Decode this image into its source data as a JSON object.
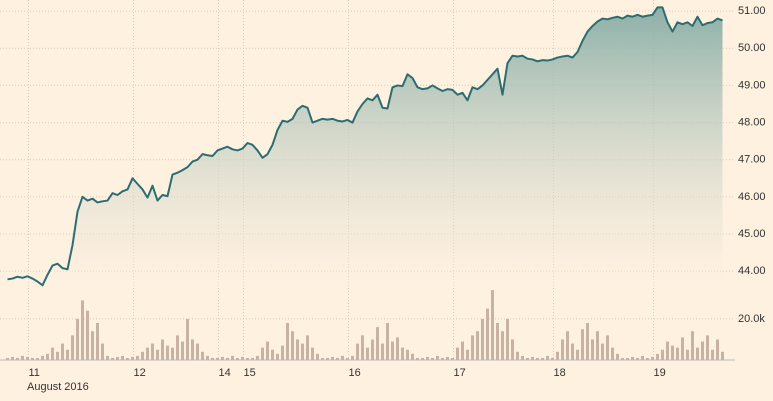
{
  "chart_data": [
    {
      "type": "area",
      "categories": [
        null,
        null,
        null,
        null,
        null,
        "11",
        null,
        null,
        null,
        null,
        null,
        null,
        null,
        null,
        null,
        null,
        null,
        null,
        null,
        null,
        null,
        null,
        null,
        null,
        null,
        null,
        "12",
        null,
        null,
        null,
        null,
        null,
        null,
        null,
        null,
        null,
        null,
        null,
        null,
        null,
        null,
        null,
        null,
        "14",
        null,
        null,
        null,
        null,
        "15",
        null,
        null,
        null,
        null,
        null,
        null,
        null,
        null,
        null,
        null,
        null,
        null,
        null,
        null,
        null,
        null,
        null,
        null,
        null,
        null,
        "16",
        null,
        null,
        null,
        null,
        null,
        null,
        null,
        null,
        null,
        null,
        null,
        null,
        null,
        null,
        null,
        null,
        null,
        null,
        null,
        null,
        "17",
        null,
        null,
        null,
        null,
        null,
        null,
        null,
        null,
        null,
        null,
        null,
        null,
        null,
        null,
        null,
        null,
        null,
        null,
        null,
        "18",
        null,
        null,
        null,
        null,
        null,
        null,
        null,
        null,
        null,
        null,
        null,
        null,
        null,
        null,
        null,
        null,
        null,
        null,
        null,
        "19",
        null,
        null,
        null,
        null,
        null,
        null,
        null,
        null,
        null,
        null,
        null,
        null,
        null
      ],
      "x_sublabel": "August 2016",
      "values": [
        43.78,
        43.8,
        43.85,
        43.82,
        43.86,
        43.8,
        43.72,
        43.62,
        43.9,
        44.15,
        44.2,
        44.08,
        44.05,
        44.7,
        45.6,
        46.0,
        45.9,
        45.95,
        45.85,
        45.88,
        45.9,
        46.1,
        46.05,
        46.15,
        46.2,
        46.5,
        46.35,
        46.2,
        45.98,
        46.3,
        45.9,
        46.05,
        46.02,
        46.6,
        46.65,
        46.72,
        46.8,
        46.95,
        47.0,
        47.15,
        47.12,
        47.1,
        47.25,
        47.3,
        47.35,
        47.28,
        47.25,
        47.3,
        47.45,
        47.4,
        47.25,
        47.05,
        47.15,
        47.4,
        47.8,
        48.05,
        48.02,
        48.1,
        48.35,
        48.45,
        48.4,
        48.0,
        48.05,
        48.1,
        48.08,
        48.1,
        48.05,
        48.03,
        48.07,
        48.0,
        48.3,
        48.5,
        48.65,
        48.6,
        48.75,
        48.4,
        48.38,
        48.95,
        49.0,
        48.98,
        49.3,
        49.2,
        48.95,
        48.9,
        48.92,
        49.0,
        48.92,
        48.85,
        48.9,
        48.88,
        48.75,
        48.8,
        48.6,
        48.95,
        48.9,
        49.0,
        49.15,
        49.3,
        49.45,
        48.75,
        49.6,
        49.8,
        49.78,
        49.8,
        49.72,
        49.7,
        49.65,
        49.68,
        49.67,
        49.7,
        49.75,
        49.78,
        49.8,
        49.75,
        49.9,
        50.2,
        50.45,
        50.6,
        50.72,
        50.8,
        50.78,
        50.82,
        50.85,
        50.8,
        50.88,
        50.85,
        50.9,
        50.85,
        50.88,
        50.9,
        51.1,
        51.1,
        50.7,
        50.45,
        50.7,
        50.65,
        50.7,
        50.6,
        50.85,
        50.62,
        50.68,
        50.7,
        50.8,
        50.75
      ],
      "color": "#2b6d71",
      "ylim": [
        43.6,
        51.3
      ],
      "yticks": [
        {
          "value": 44,
          "label": "44.00"
        },
        {
          "value": 45,
          "label": "45.00"
        },
        {
          "value": 46,
          "label": "46.00"
        },
        {
          "value": 47,
          "label": "47.00"
        },
        {
          "value": 48,
          "label": "48.00"
        },
        {
          "value": 49,
          "label": "49.00"
        },
        {
          "value": 50,
          "label": "50.00"
        },
        {
          "value": 51,
          "label": "51.00"
        }
      ],
      "grid": true
    },
    {
      "type": "bar",
      "values": [
        1000,
        1500,
        1000,
        2000,
        1500,
        1000,
        1000,
        2000,
        3000,
        6000,
        4000,
        8000,
        5000,
        12000,
        20000,
        29000,
        24000,
        14000,
        18000,
        8000,
        2000,
        1000,
        1500,
        2000,
        1000,
        1500,
        2000,
        4000,
        6000,
        8000,
        5000,
        10000,
        7000,
        6000,
        12000,
        9000,
        20000,
        10000,
        8000,
        4000,
        2000,
        1000,
        1000,
        1500,
        1000,
        2000,
        1000,
        1500,
        1000,
        1000,
        2000,
        6000,
        9000,
        5000,
        3000,
        7000,
        18000,
        14000,
        10000,
        8000,
        12000,
        6000,
        3000,
        1000,
        1000,
        1500,
        1000,
        2000,
        1000,
        2000,
        8000,
        12000,
        6000,
        10000,
        16000,
        8000,
        18000,
        9000,
        11000,
        6000,
        5000,
        3000,
        1000,
        1000,
        1500,
        1000,
        2000,
        1000,
        1500,
        1000,
        6000,
        9000,
        5000,
        12000,
        14000,
        20000,
        25000,
        34000,
        18000,
        14000,
        20000,
        10000,
        4000,
        2000,
        1000,
        1500,
        1000,
        1000,
        2000,
        1000,
        4000,
        10000,
        14000,
        8000,
        5000,
        15000,
        18000,
        10000,
        14000,
        8000,
        12000,
        6000,
        3000,
        1000,
        1000,
        1500,
        1000,
        2000,
        1000,
        1500,
        3000,
        5000,
        9000,
        7000,
        6000,
        11000,
        5000,
        14000,
        6000,
        9000,
        12000,
        5000,
        10000,
        4000
      ],
      "color": "#c8b3a3",
      "ylim": [
        0,
        36000
      ],
      "yticks": [
        {
          "value": 20000,
          "label": "20.0k"
        }
      ],
      "grid": true
    }
  ]
}
